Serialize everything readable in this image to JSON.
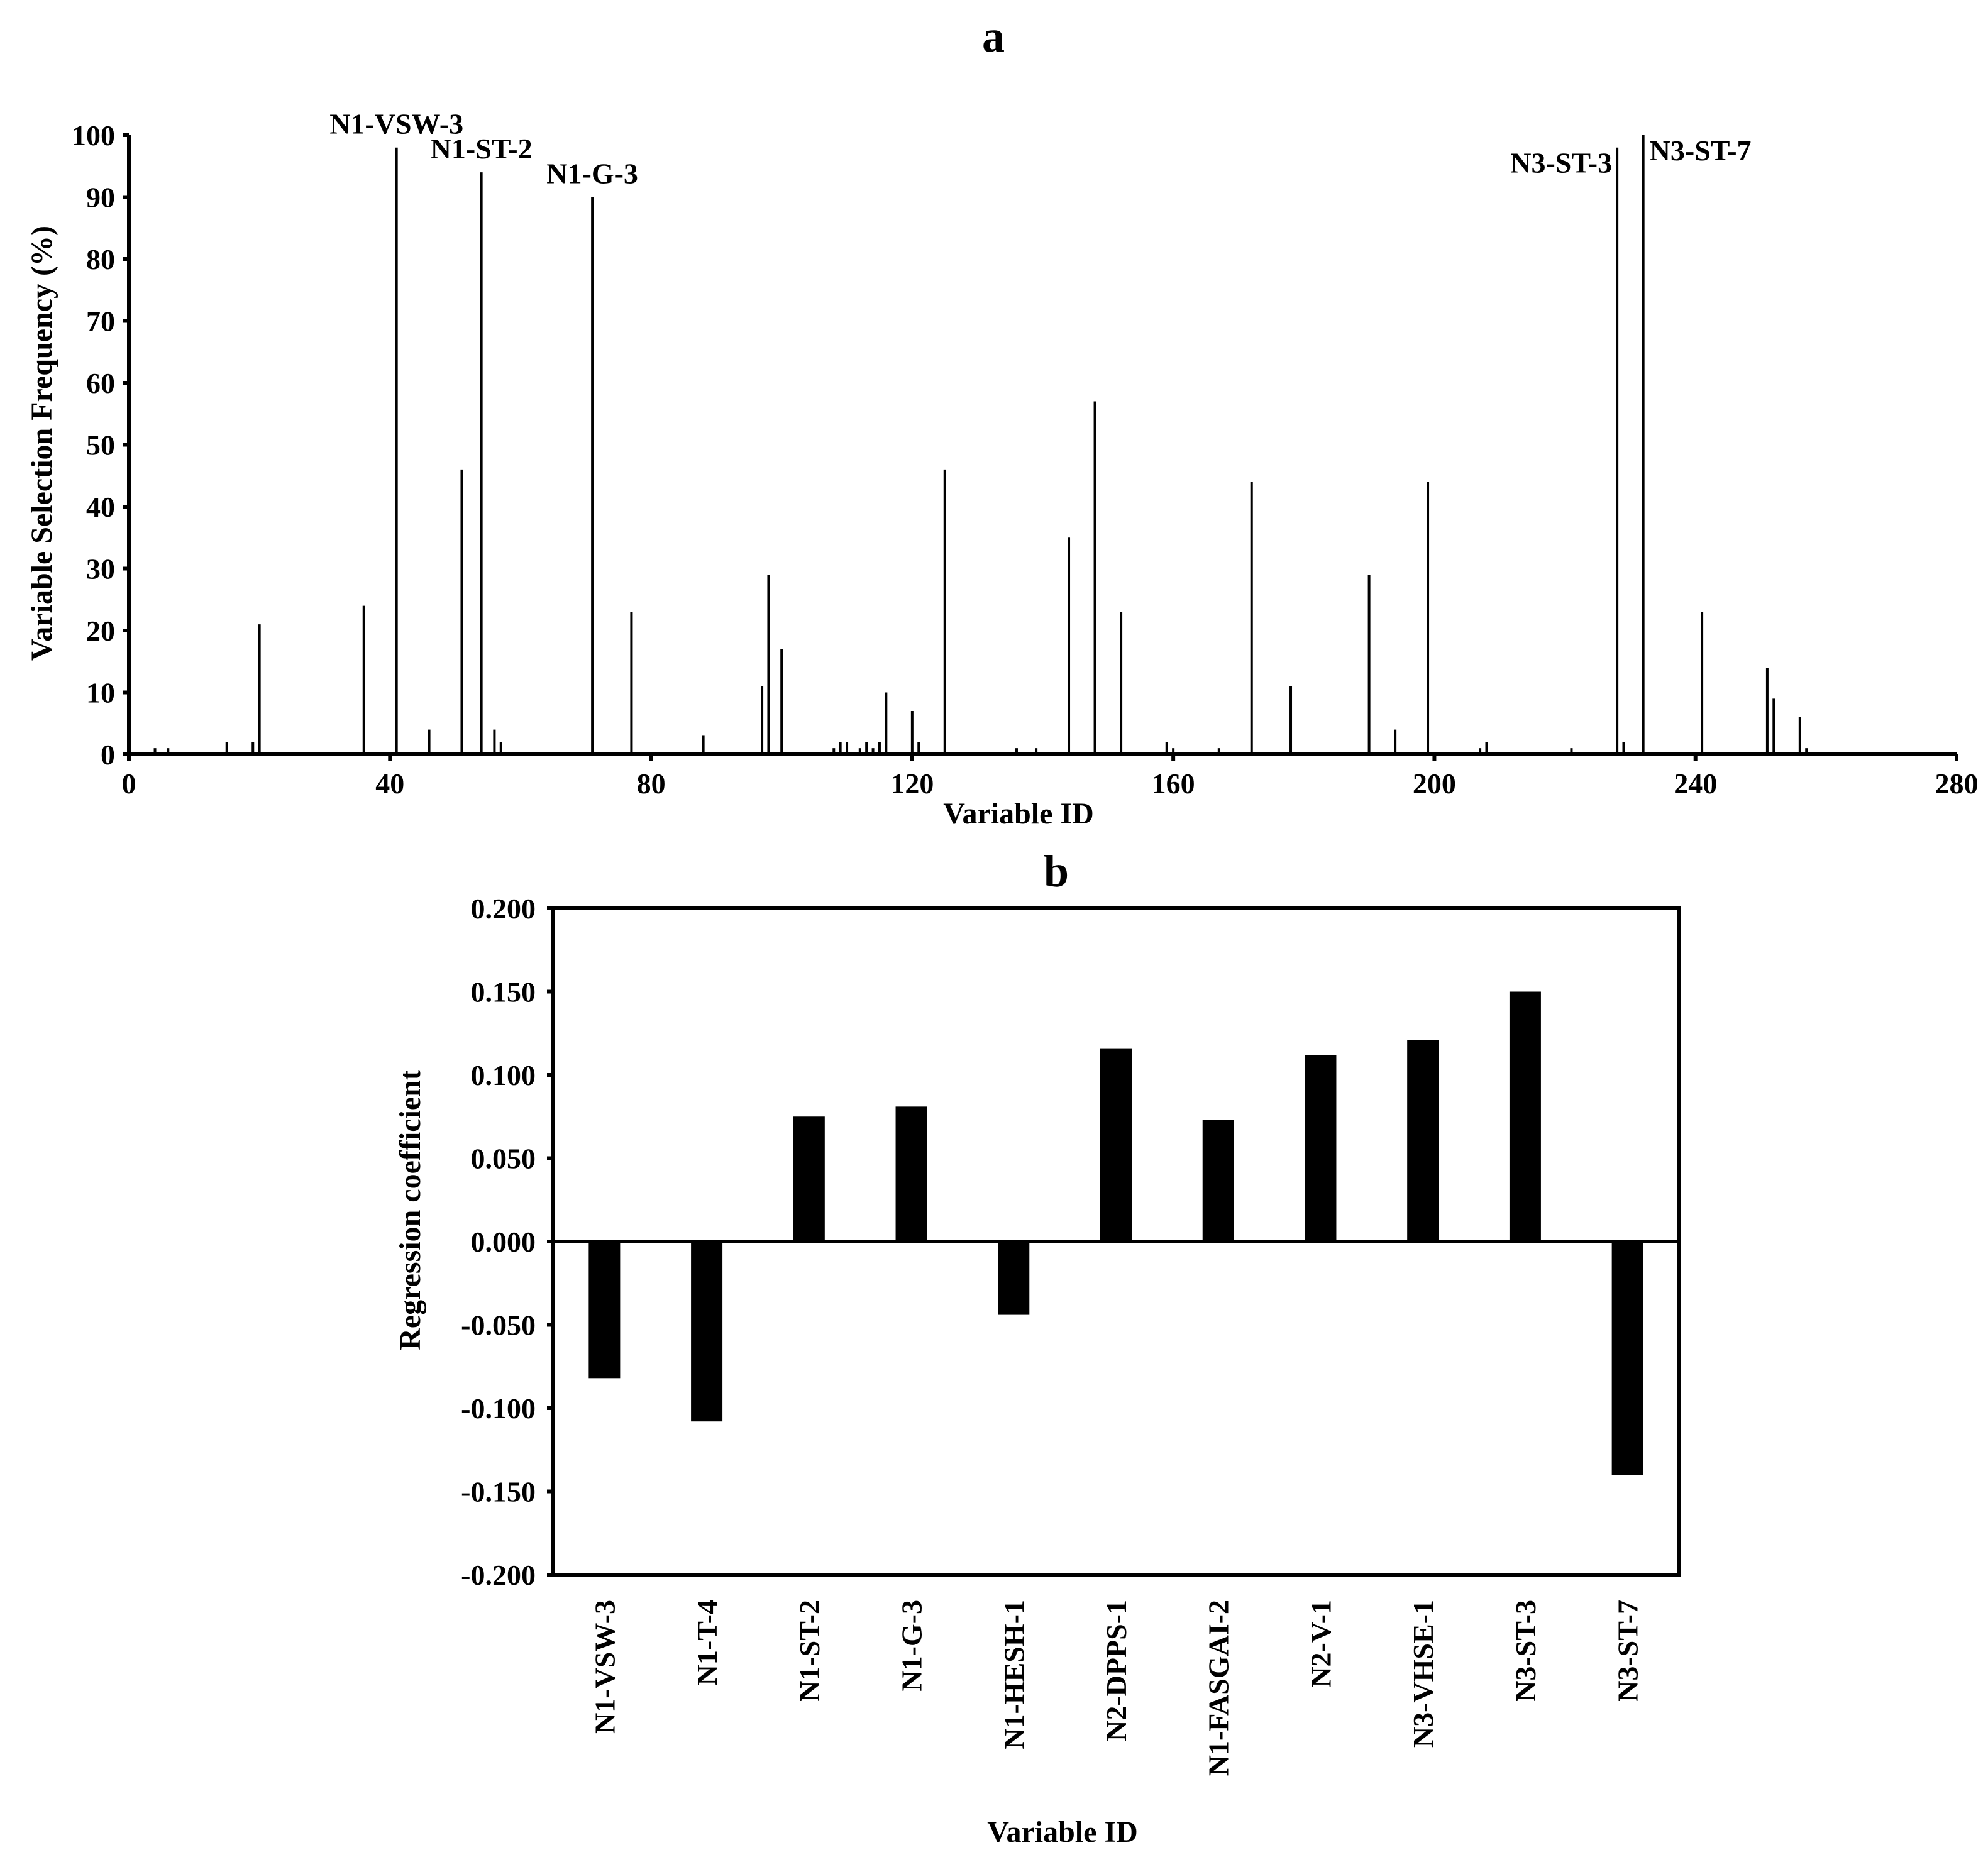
{
  "chart_data": [
    {
      "id": "a",
      "type": "bar",
      "style": "spike",
      "title": "a",
      "xlabel": "Variable ID",
      "ylabel": "Variable Selection Frequency (%)",
      "xlim": [
        0,
        280
      ],
      "ylim": [
        0,
        100
      ],
      "x_ticks": [
        0,
        40,
        80,
        120,
        160,
        200,
        240,
        280
      ],
      "y_ticks": [
        0,
        10,
        20,
        30,
        40,
        50,
        60,
        70,
        80,
        90,
        100
      ],
      "x": [
        4,
        6,
        15,
        19,
        20,
        36,
        41,
        46,
        51,
        54,
        56,
        57,
        71,
        77,
        88,
        97,
        98,
        100,
        108,
        109,
        110,
        112,
        113,
        114,
        115,
        116,
        120,
        121,
        125,
        136,
        139,
        144,
        148,
        152,
        159,
        160,
        167,
        172,
        178,
        190,
        194,
        199,
        207,
        208,
        221,
        228,
        229,
        232,
        241,
        251,
        252,
        256,
        257
      ],
      "values": [
        1,
        1,
        2,
        2,
        21,
        24,
        98,
        4,
        46,
        94,
        4,
        2,
        90,
        23,
        3,
        11,
        29,
        17,
        1,
        2,
        2,
        1,
        2,
        1,
        2,
        10,
        7,
        2,
        46,
        1,
        1,
        35,
        57,
        23,
        2,
        1,
        1,
        44,
        11,
        29,
        4,
        44,
        1,
        2,
        1,
        98,
        2,
        100,
        23,
        14,
        9,
        6,
        1
      ],
      "annotations": [
        {
          "text": "N1-VSW-3",
          "x": 41
        },
        {
          "text": "N1-ST-2",
          "x": 54
        },
        {
          "text": "N1-G-3",
          "x": 71
        },
        {
          "text": "N3-ST-3",
          "x": 228
        },
        {
          "text": "N3-ST-7",
          "x": 232
        }
      ]
    },
    {
      "id": "b",
      "type": "bar",
      "title": "b",
      "xlabel": "Variable ID",
      "ylabel": "Regression coefficient",
      "ylim": [
        -0.2,
        0.2
      ],
      "y_ticks": [
        -0.2,
        -0.15,
        -0.1,
        -0.05,
        0,
        0.05,
        0.1,
        0.15,
        0.2
      ],
      "y_tick_labels": [
        "-0.200",
        "-0.150",
        "-0.100",
        "-0.050",
        "0.000",
        "0.050",
        "0.100",
        "0.150",
        "0.200"
      ],
      "categories": [
        "N1-VSW-3",
        "N1-T-4",
        "N1-ST-2",
        "N1-G-3",
        "N1-HESH-1",
        "N2-DPPS-1",
        "N1-FASGAI-2",
        "N2-V-1",
        "N3-VHSE-1",
        "N3-ST-3",
        "N3-ST-7"
      ],
      "values": [
        -0.082,
        -0.108,
        0.075,
        0.081,
        -0.044,
        0.116,
        0.073,
        0.112,
        0.121,
        0.15,
        -0.14
      ]
    }
  ]
}
